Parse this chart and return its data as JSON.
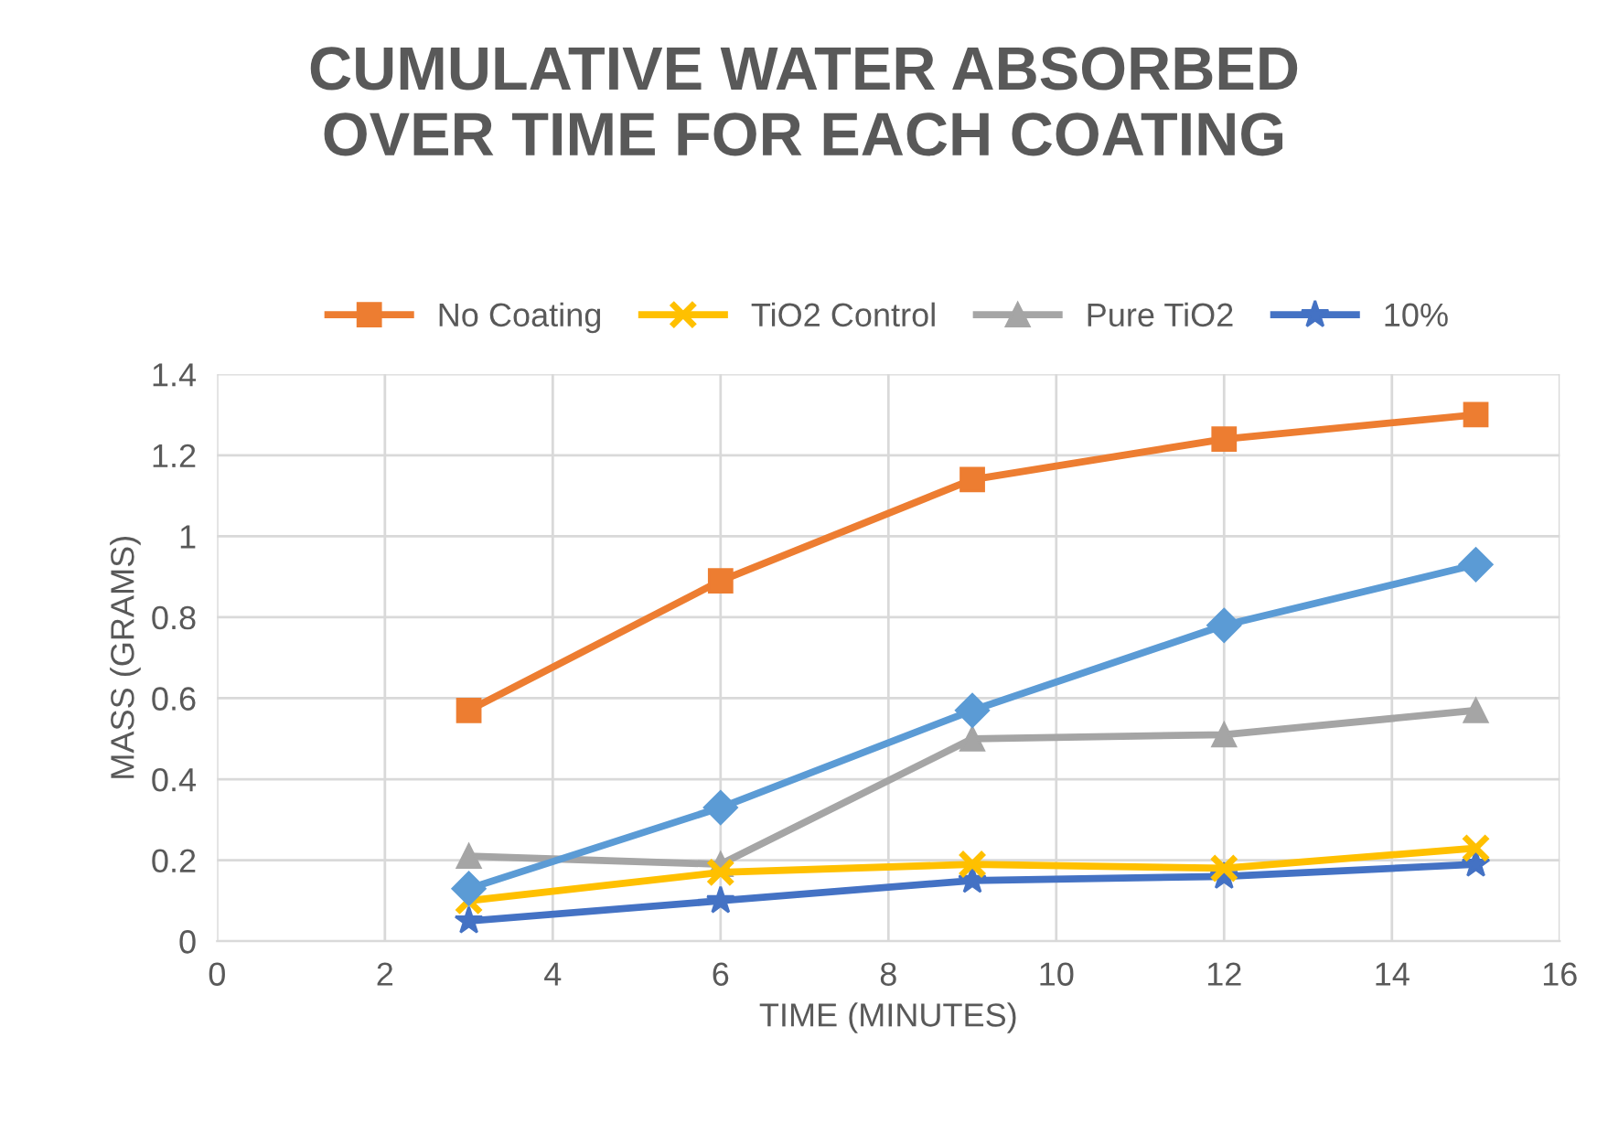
{
  "chart_data": {
    "type": "line",
    "title": "CUMULATIVE WATER ABSORBED\nOVER TIME FOR EACH COATING",
    "xlabel": "TIME (MINUTES)",
    "ylabel": "MASS (GRAMS)",
    "x": [
      3,
      6,
      9,
      12,
      15
    ],
    "series": [
      {
        "name": "No Coating",
        "color": "#ed7d31",
        "marker": "square",
        "values": [
          0.57,
          0.89,
          1.14,
          1.24,
          1.3
        ]
      },
      {
        "color": "#5b9bd5",
        "marker": "diamond",
        "values": [
          0.13,
          0.33,
          0.57,
          0.78,
          0.93
        ]
      },
      {
        "name": "TiO2 Control",
        "color": "#ffc000",
        "marker": "cross",
        "values": [
          0.1,
          0.17,
          0.19,
          0.18,
          0.23
        ]
      },
      {
        "name": "Pure TiO2",
        "color": "#a5a5a5",
        "marker": "triangle",
        "values": [
          0.21,
          0.19,
          0.5,
          0.51,
          0.57
        ]
      },
      {
        "name": "10%",
        "color": "#4472c4",
        "marker": "star",
        "values": [
          0.05,
          0.1,
          0.15,
          0.16,
          0.19
        ]
      }
    ],
    "xlim": [
      0,
      16
    ],
    "xticks": [
      0,
      2,
      4,
      6,
      8,
      10,
      12,
      14,
      16
    ],
    "ylim": [
      0,
      1.4
    ],
    "yticks": [
      0,
      0.2,
      0.4,
      0.6,
      0.8,
      1,
      1.2,
      1.4
    ],
    "grid": true,
    "legend": "top",
    "line_style": "solid"
  }
}
